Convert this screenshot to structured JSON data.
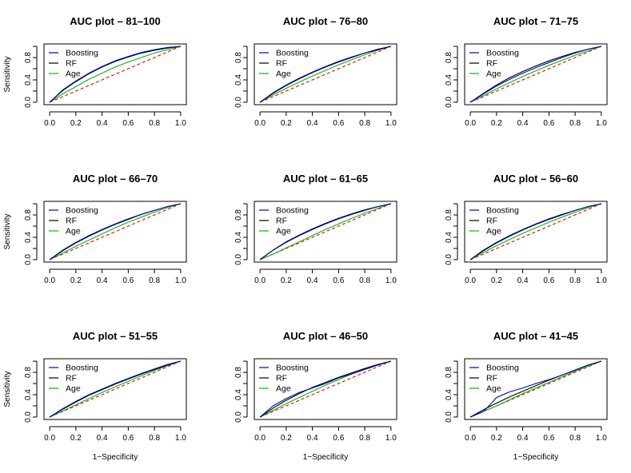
{
  "chart_data": [
    {
      "type": "line",
      "title": "AUC plot – 81–100",
      "xlabel": "",
      "ylabel": "Sensitivity",
      "xlim": [
        0,
        1
      ],
      "ylim": [
        0,
        1
      ],
      "xticks": [
        "0.0",
        "0.2",
        "0.4",
        "0.6",
        "0.8",
        "1.0"
      ],
      "yticks": [
        "0.0",
        "0.4",
        "0.8"
      ],
      "legend": "top-left",
      "series": [
        {
          "name": "Boosting",
          "color": "#0000cc",
          "x": [
            0,
            0.1,
            0.2,
            0.3,
            0.4,
            0.5,
            0.6,
            0.7,
            0.8,
            0.9,
            1.0
          ],
          "y": [
            0,
            0.22,
            0.38,
            0.52,
            0.64,
            0.74,
            0.82,
            0.89,
            0.94,
            0.98,
            1.0
          ]
        },
        {
          "name": "RF",
          "color": "#000000",
          "x": [
            0,
            0.1,
            0.2,
            0.3,
            0.4,
            0.5,
            0.6,
            0.7,
            0.8,
            0.9,
            1.0
          ],
          "y": [
            0,
            0.21,
            0.37,
            0.51,
            0.63,
            0.73,
            0.81,
            0.88,
            0.93,
            0.97,
            1.0
          ]
        },
        {
          "name": "Age",
          "color": "#00bb00",
          "x": [
            0,
            0.1,
            0.2,
            0.3,
            0.4,
            0.5,
            0.6,
            0.7,
            0.8,
            0.9,
            1.0
          ],
          "y": [
            0,
            0.15,
            0.28,
            0.41,
            0.52,
            0.63,
            0.72,
            0.8,
            0.88,
            0.94,
            1.0
          ]
        },
        {
          "name": "",
          "color": "#ee0000",
          "dashed": true,
          "x": [
            0,
            1
          ],
          "y": [
            0,
            1
          ]
        }
      ]
    },
    {
      "type": "line",
      "title": "AUC plot – 76–80",
      "xlabel": "",
      "ylabel": "",
      "xlim": [
        0,
        1
      ],
      "ylim": [
        0,
        1
      ],
      "xticks": [
        "0.0",
        "0.2",
        "0.4",
        "0.6",
        "0.8",
        "1.0"
      ],
      "yticks": [
        "0.0",
        "0.4",
        "0.8"
      ],
      "legend": "top-left",
      "series": [
        {
          "name": "Boosting",
          "color": "#0000cc",
          "x": [
            0,
            0.1,
            0.2,
            0.3,
            0.4,
            0.5,
            0.6,
            0.7,
            0.8,
            0.9,
            1.0
          ],
          "y": [
            0,
            0.17,
            0.31,
            0.43,
            0.54,
            0.64,
            0.73,
            0.81,
            0.88,
            0.95,
            1.0
          ]
        },
        {
          "name": "RF",
          "color": "#000000",
          "x": [
            0,
            0.1,
            0.2,
            0.3,
            0.4,
            0.5,
            0.6,
            0.7,
            0.8,
            0.9,
            1.0
          ],
          "y": [
            0,
            0.16,
            0.3,
            0.42,
            0.53,
            0.63,
            0.72,
            0.8,
            0.88,
            0.94,
            1.0
          ]
        },
        {
          "name": "Age",
          "color": "#00bb00",
          "x": [
            0,
            0.1,
            0.2,
            0.3,
            0.4,
            0.5,
            0.6,
            0.7,
            0.8,
            0.9,
            1.0
          ],
          "y": [
            0,
            0.13,
            0.25,
            0.36,
            0.47,
            0.57,
            0.67,
            0.76,
            0.85,
            0.93,
            1.0
          ]
        },
        {
          "name": "",
          "color": "#ee0000",
          "dashed": true,
          "x": [
            0,
            1
          ],
          "y": [
            0,
            1
          ]
        }
      ]
    },
    {
      "type": "line",
      "title": "AUC plot – 71–75",
      "xlabel": "",
      "ylabel": "",
      "xlim": [
        0,
        1
      ],
      "ylim": [
        0,
        1
      ],
      "xticks": [
        "0.0",
        "0.2",
        "0.4",
        "0.6",
        "0.8",
        "1.0"
      ],
      "yticks": [
        "0.0",
        "0.4",
        "0.8"
      ],
      "legend": "top-left",
      "series": [
        {
          "name": "Boosting",
          "color": "#0000cc",
          "x": [
            0,
            0.1,
            0.2,
            0.3,
            0.4,
            0.5,
            0.6,
            0.7,
            0.8,
            0.9,
            1.0
          ],
          "y": [
            0,
            0.15,
            0.29,
            0.41,
            0.52,
            0.62,
            0.71,
            0.8,
            0.88,
            0.95,
            1.0
          ]
        },
        {
          "name": "RF",
          "color": "#000000",
          "x": [
            0,
            0.1,
            0.2,
            0.3,
            0.4,
            0.5,
            0.6,
            0.7,
            0.8,
            0.9,
            1.0
          ],
          "y": [
            0,
            0.16,
            0.31,
            0.44,
            0.55,
            0.65,
            0.74,
            0.82,
            0.89,
            0.95,
            1.0
          ]
        },
        {
          "name": "Age",
          "color": "#00bb00",
          "x": [
            0,
            0.1,
            0.2,
            0.3,
            0.4,
            0.5,
            0.6,
            0.7,
            0.8,
            0.9,
            1.0
          ],
          "y": [
            0,
            0.12,
            0.24,
            0.35,
            0.46,
            0.56,
            0.66,
            0.75,
            0.84,
            0.92,
            1.0
          ]
        },
        {
          "name": "",
          "color": "#ee0000",
          "dashed": true,
          "x": [
            0,
            1
          ],
          "y": [
            0,
            1
          ]
        }
      ]
    },
    {
      "type": "line",
      "title": "AUC plot – 66–70",
      "xlabel": "",
      "ylabel": "Sensitivity",
      "xlim": [
        0,
        1
      ],
      "ylim": [
        0,
        1
      ],
      "xticks": [
        "0.0",
        "0.2",
        "0.4",
        "0.6",
        "0.8",
        "1.0"
      ],
      "yticks": [
        "0.0",
        "0.4",
        "0.8"
      ],
      "legend": "top-left",
      "series": [
        {
          "name": "Boosting",
          "color": "#0000cc",
          "x": [
            0,
            0.1,
            0.2,
            0.3,
            0.4,
            0.5,
            0.6,
            0.7,
            0.8,
            0.9,
            1.0
          ],
          "y": [
            0,
            0.17,
            0.31,
            0.43,
            0.54,
            0.64,
            0.73,
            0.81,
            0.88,
            0.95,
            1.0
          ]
        },
        {
          "name": "RF",
          "color": "#000000",
          "x": [
            0,
            0.1,
            0.2,
            0.3,
            0.4,
            0.5,
            0.6,
            0.7,
            0.8,
            0.9,
            1.0
          ],
          "y": [
            0,
            0.16,
            0.3,
            0.42,
            0.53,
            0.63,
            0.72,
            0.81,
            0.88,
            0.95,
            1.0
          ]
        },
        {
          "name": "Age",
          "color": "#00bb00",
          "x": [
            0,
            0.1,
            0.2,
            0.3,
            0.4,
            0.5,
            0.6,
            0.7,
            0.8,
            0.9,
            1.0
          ],
          "y": [
            0,
            0.12,
            0.24,
            0.35,
            0.46,
            0.57,
            0.67,
            0.76,
            0.85,
            0.93,
            1.0
          ]
        },
        {
          "name": "",
          "color": "#ee0000",
          "dashed": true,
          "x": [
            0,
            1
          ],
          "y": [
            0,
            1
          ]
        }
      ]
    },
    {
      "type": "line",
      "title": "AUC plot – 61–65",
      "xlabel": "",
      "ylabel": "",
      "xlim": [
        0,
        1
      ],
      "ylim": [
        0,
        1
      ],
      "xticks": [
        "0.0",
        "0.2",
        "0.4",
        "0.6",
        "0.8",
        "1.0"
      ],
      "yticks": [
        "0.0",
        "0.4",
        "0.8"
      ],
      "legend": "top-left",
      "series": [
        {
          "name": "Boosting",
          "color": "#0000cc",
          "x": [
            0,
            0.1,
            0.2,
            0.3,
            0.4,
            0.5,
            0.6,
            0.7,
            0.8,
            0.9,
            1.0
          ],
          "y": [
            0,
            0.17,
            0.31,
            0.43,
            0.54,
            0.64,
            0.73,
            0.81,
            0.88,
            0.95,
            1.0
          ]
        },
        {
          "name": "RF",
          "color": "#000000",
          "x": [
            0,
            0.1,
            0.2,
            0.3,
            0.4,
            0.5,
            0.6,
            0.7,
            0.8,
            0.9,
            1.0
          ],
          "y": [
            0,
            0.17,
            0.32,
            0.44,
            0.55,
            0.65,
            0.74,
            0.82,
            0.89,
            0.95,
            1.0
          ]
        },
        {
          "name": "Age",
          "color": "#00bb00",
          "x": [
            0,
            0.1,
            0.2,
            0.3,
            0.4,
            0.5,
            0.6,
            0.7,
            0.8,
            0.9,
            1.0
          ],
          "y": [
            0,
            0.1,
            0.21,
            0.32,
            0.43,
            0.54,
            0.64,
            0.74,
            0.83,
            0.92,
            1.0
          ]
        },
        {
          "name": "",
          "color": "#ee0000",
          "dashed": true,
          "x": [
            0,
            1
          ],
          "y": [
            0,
            1
          ]
        }
      ]
    },
    {
      "type": "line",
      "title": "AUC plot – 56–60",
      "xlabel": "",
      "ylabel": "",
      "xlim": [
        0,
        1
      ],
      "ylim": [
        0,
        1
      ],
      "xticks": [
        "0.0",
        "0.2",
        "0.4",
        "0.6",
        "0.8",
        "1.0"
      ],
      "yticks": [
        "0.0",
        "0.4",
        "0.8"
      ],
      "legend": "top-left",
      "series": [
        {
          "name": "Boosting",
          "color": "#0000cc",
          "x": [
            0,
            0.1,
            0.2,
            0.3,
            0.4,
            0.5,
            0.6,
            0.7,
            0.8,
            0.9,
            1.0
          ],
          "y": [
            0,
            0.17,
            0.31,
            0.43,
            0.54,
            0.64,
            0.73,
            0.81,
            0.88,
            0.95,
            1.0
          ]
        },
        {
          "name": "RF",
          "color": "#000000",
          "x": [
            0,
            0.1,
            0.2,
            0.3,
            0.4,
            0.5,
            0.6,
            0.7,
            0.8,
            0.9,
            1.0
          ],
          "y": [
            0,
            0.16,
            0.3,
            0.42,
            0.53,
            0.63,
            0.72,
            0.8,
            0.88,
            0.95,
            1.0
          ]
        },
        {
          "name": "Age",
          "color": "#00bb00",
          "x": [
            0,
            0.1,
            0.2,
            0.3,
            0.4,
            0.5,
            0.6,
            0.7,
            0.8,
            0.9,
            1.0
          ],
          "y": [
            0,
            0.13,
            0.25,
            0.36,
            0.47,
            0.57,
            0.67,
            0.76,
            0.85,
            0.93,
            1.0
          ]
        },
        {
          "name": "",
          "color": "#ee0000",
          "dashed": true,
          "x": [
            0,
            1
          ],
          "y": [
            0,
            1
          ]
        }
      ]
    },
    {
      "type": "line",
      "title": "AUC plot – 51–55",
      "xlabel": "1−Specificity",
      "ylabel": "Sensitivity",
      "xlim": [
        0,
        1
      ],
      "ylim": [
        0,
        1
      ],
      "xticks": [
        "0.0",
        "0.2",
        "0.4",
        "0.6",
        "0.8",
        "1.0"
      ],
      "yticks": [
        "0.0",
        "0.4",
        "0.8"
      ],
      "legend": "top-left",
      "series": [
        {
          "name": "Boosting",
          "color": "#0000cc",
          "x": [
            0,
            0.1,
            0.2,
            0.3,
            0.4,
            0.5,
            0.6,
            0.7,
            0.8,
            0.9,
            1.0
          ],
          "y": [
            0,
            0.15,
            0.28,
            0.4,
            0.5,
            0.6,
            0.69,
            0.78,
            0.86,
            0.94,
            1.0
          ]
        },
        {
          "name": "RF",
          "color": "#000000",
          "x": [
            0,
            0.1,
            0.2,
            0.3,
            0.4,
            0.5,
            0.6,
            0.7,
            0.8,
            0.9,
            1.0
          ],
          "y": [
            0,
            0.14,
            0.27,
            0.39,
            0.49,
            0.59,
            0.68,
            0.77,
            0.85,
            0.93,
            1.0
          ]
        },
        {
          "name": "Age",
          "color": "#00bb00",
          "x": [
            0,
            0.1,
            0.2,
            0.3,
            0.4,
            0.5,
            0.6,
            0.7,
            0.8,
            0.9,
            1.0
          ],
          "y": [
            0,
            0.11,
            0.22,
            0.33,
            0.44,
            0.54,
            0.64,
            0.74,
            0.83,
            0.92,
            1.0
          ]
        },
        {
          "name": "",
          "color": "#ee0000",
          "dashed": true,
          "x": [
            0,
            1
          ],
          "y": [
            0,
            1
          ]
        }
      ]
    },
    {
      "type": "line",
      "title": "AUC plot – 46–50",
      "xlabel": "1−Specificity",
      "ylabel": "",
      "xlim": [
        0,
        1
      ],
      "ylim": [
        0,
        1
      ],
      "xticks": [
        "0.0",
        "0.2",
        "0.4",
        "0.6",
        "0.8",
        "1.0"
      ],
      "yticks": [
        "0.0",
        "0.4",
        "0.8"
      ],
      "legend": "top-left",
      "series": [
        {
          "name": "Boosting",
          "color": "#0000cc",
          "x": [
            0,
            0.1,
            0.2,
            0.3,
            0.4,
            0.5,
            0.6,
            0.7,
            0.8,
            0.9,
            1.0
          ],
          "y": [
            0,
            0.2,
            0.33,
            0.44,
            0.52,
            0.6,
            0.7,
            0.77,
            0.85,
            0.93,
            1.0
          ]
        },
        {
          "name": "RF",
          "color": "#000000",
          "x": [
            0,
            0.1,
            0.2,
            0.3,
            0.4,
            0.5,
            0.6,
            0.7,
            0.8,
            0.9,
            1.0
          ],
          "y": [
            0,
            0.16,
            0.3,
            0.42,
            0.53,
            0.62,
            0.71,
            0.79,
            0.87,
            0.94,
            1.0
          ]
        },
        {
          "name": "Age",
          "color": "#00bb00",
          "x": [
            0,
            0.1,
            0.2,
            0.3,
            0.4,
            0.5,
            0.6,
            0.7,
            0.8,
            0.9,
            1.0
          ],
          "y": [
            0,
            0.12,
            0.24,
            0.35,
            0.46,
            0.57,
            0.67,
            0.77,
            0.86,
            0.94,
            1.0
          ]
        },
        {
          "name": "",
          "color": "#ee0000",
          "dashed": true,
          "x": [
            0,
            1
          ],
          "y": [
            0,
            1
          ]
        }
      ]
    },
    {
      "type": "line",
      "title": "AUC plot – 41–45",
      "xlabel": "1−Specificity",
      "ylabel": "",
      "xlim": [
        0,
        1
      ],
      "ylim": [
        0,
        1
      ],
      "xticks": [
        "0.0",
        "0.2",
        "0.4",
        "0.6",
        "0.8",
        "1.0"
      ],
      "yticks": [
        "0.0",
        "0.4",
        "0.8"
      ],
      "legend": "top-left",
      "series": [
        {
          "name": "Boosting",
          "color": "#0000cc",
          "x": [
            0,
            0.05,
            0.1,
            0.15,
            0.2,
            0.3,
            0.4,
            0.5,
            0.6,
            0.7,
            0.8,
            0.9,
            1.0
          ],
          "y": [
            0,
            0.05,
            0.1,
            0.22,
            0.35,
            0.45,
            0.52,
            0.6,
            0.67,
            0.75,
            0.84,
            0.93,
            1.0
          ]
        },
        {
          "name": "RF",
          "color": "#000000",
          "x": [
            0,
            0.1,
            0.2,
            0.3,
            0.4,
            0.5,
            0.6,
            0.7,
            0.8,
            0.9,
            1.0
          ],
          "y": [
            0,
            0.13,
            0.25,
            0.36,
            0.46,
            0.56,
            0.66,
            0.75,
            0.84,
            0.93,
            1.0
          ]
        },
        {
          "name": "Age",
          "color": "#00bb00",
          "x": [
            0,
            0.1,
            0.2,
            0.3,
            0.4,
            0.5,
            0.6,
            0.7,
            0.8,
            0.9,
            1.0
          ],
          "y": [
            0,
            0.1,
            0.2,
            0.31,
            0.42,
            0.52,
            0.62,
            0.72,
            0.82,
            0.91,
            1.0
          ]
        },
        {
          "name": "",
          "color": "#ee0000",
          "dashed": true,
          "x": [
            0,
            1
          ],
          "y": [
            0,
            1
          ]
        }
      ]
    }
  ]
}
